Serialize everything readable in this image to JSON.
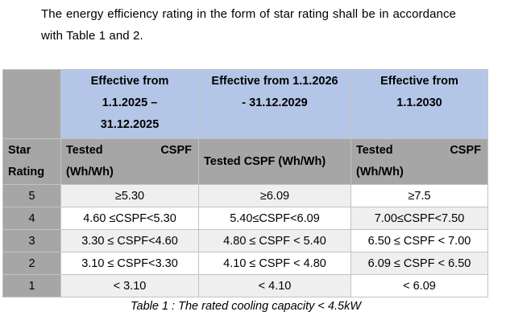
{
  "intro_text": "The energy efficiency rating in the form of star rating shall be in accordance with Table 1 and 2.",
  "table": {
    "periods": [
      {
        "line1": "Effective from",
        "line2": "1.1.2025 –",
        "line3": "31.12.2025"
      },
      {
        "line1": "Effective from 1.1.2026",
        "line2": "- 31.12.2029",
        "line3": ""
      },
      {
        "line1": "Effective from",
        "line2": "1.1.2030",
        "line3": ""
      }
    ],
    "star_header": {
      "line1": "Star",
      "line2": "Rating"
    },
    "tested_headers": [
      {
        "left": "Tested",
        "right": "CSPF",
        "line2": "(Wh/Wh)"
      },
      {
        "text": "Tested CSPF (Wh/Wh)"
      },
      {
        "left": "Tested",
        "right": "CSPF",
        "line2": "(Wh/Wh)"
      }
    ],
    "rows": [
      {
        "star": "5",
        "values": [
          "≥5.30",
          "≥6.09",
          "≥7.5"
        ]
      },
      {
        "star": "4",
        "values": [
          "4.60 ≤CSPF<5.30",
          "5.40≤CSPF<6.09",
          "7.00≤CSPF<7.50"
        ]
      },
      {
        "star": "3",
        "values": [
          "3.30 ≤ CSPF<4.60",
          "4.80 ≤ CSPF < 5.40",
          "6.50 ≤ CSPF < 7.00"
        ]
      },
      {
        "star": "2",
        "values": [
          "3.10 ≤ CSPF<3.30",
          "4.10 ≤ CSPF < 4.80",
          "6.09 ≤ CSPF < 6.50"
        ]
      },
      {
        "star": "1",
        "values": [
          "< 3.10",
          "< 4.10",
          "< 6.09"
        ]
      }
    ]
  },
  "caption": "Table 1 : The rated cooling capacity < 4.5kW",
  "colors": {
    "header_blue": "#b4c6e7",
    "header_gray": "#a6a6a6",
    "row_light": "#efefef"
  }
}
